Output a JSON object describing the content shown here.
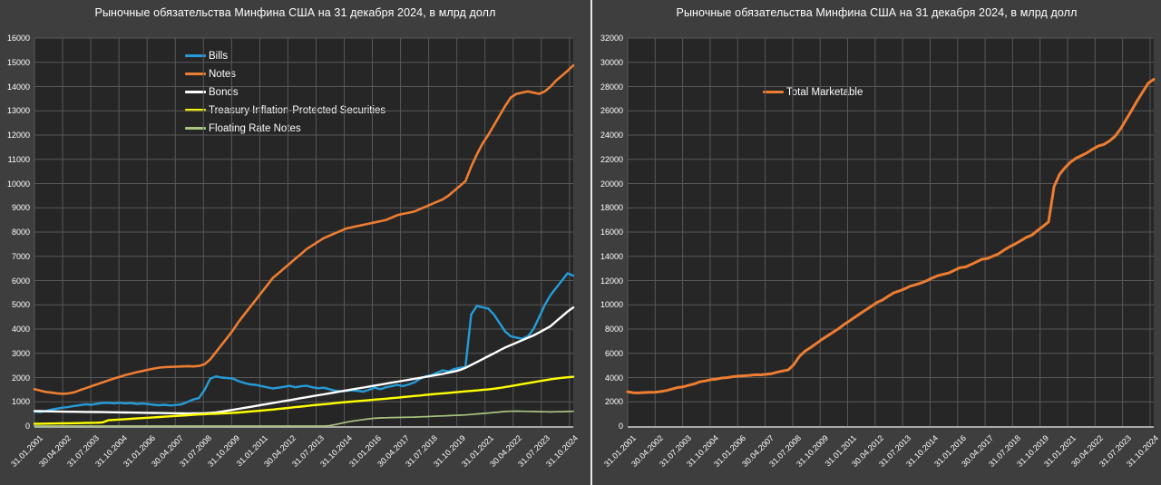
{
  "colors": {
    "background": "#3E3E3E",
    "plot_background": "#262626",
    "gridline": "#585858",
    "axis_line": "#A9A9A9",
    "text": "#FFFFFF",
    "divider": "#E8E8E8"
  },
  "chart_data": [
    {
      "type": "line",
      "title": "Рыночные обязательства Минфина США на 31 декабря 2024, в млрд долл",
      "grid": true,
      "legend_position": "inset-upper-left",
      "ylim": [
        0,
        16000
      ],
      "ytick_step": 1000,
      "yticks": [
        0,
        1000,
        2000,
        3000,
        4000,
        5000,
        6000,
        7000,
        8000,
        9000,
        10000,
        11000,
        12000,
        13000,
        14000,
        15000,
        16000
      ],
      "x_tick_labels": [
        "31.01.2001",
        "30.04.2002",
        "31.07.2003",
        "31.10.2004",
        "31.01.2006",
        "30.04.2007",
        "31.07.2008",
        "31.10.2009",
        "31.01.2011",
        "30.04.2012",
        "31.07.2013",
        "31.10.2014",
        "31.01.2016",
        "30.04.2017",
        "31.07.2018",
        "31.10.2019",
        "31.01.2021",
        "30.04.2022",
        "31.07.2023",
        "31.10.2024"
      ],
      "x_total_months": 287,
      "x_tick_interval_months": 15,
      "x_sampling": "quarterly 2001Q1 - 2024Q4",
      "series": [
        {
          "name": "Bills",
          "color": "#259CD8",
          "width": 2.4,
          "values": [
            600,
            580,
            620,
            680,
            720,
            760,
            790,
            830,
            860,
            900,
            880,
            920,
            950,
            960,
            940,
            960,
            930,
            950,
            910,
            930,
            910,
            880,
            860,
            880,
            850,
            870,
            900,
            1000,
            1100,
            1150,
            1500,
            1950,
            2050,
            2000,
            1980,
            1960,
            1850,
            1780,
            1720,
            1700,
            1650,
            1600,
            1550,
            1580,
            1620,
            1660,
            1600,
            1640,
            1660,
            1600,
            1560,
            1580,
            1520,
            1460,
            1430,
            1450,
            1480,
            1450,
            1420,
            1500,
            1580,
            1520,
            1600,
            1650,
            1700,
            1650,
            1720,
            1800,
            1950,
            2050,
            2100,
            2200,
            2300,
            2250,
            2350,
            2400,
            2450,
            4600,
            4950,
            4900,
            4850,
            4600,
            4250,
            3900,
            3700,
            3650,
            3600,
            3700,
            4000,
            4500,
            5000,
            5400,
            5700,
            6000,
            6300,
            6200
          ]
        },
        {
          "name": "Notes",
          "color": "#ED7D31",
          "width": 2.6,
          "values": [
            1520,
            1460,
            1410,
            1380,
            1350,
            1330,
            1350,
            1390,
            1480,
            1560,
            1640,
            1720,
            1800,
            1880,
            1960,
            2030,
            2100,
            2160,
            2220,
            2270,
            2320,
            2370,
            2410,
            2430,
            2440,
            2450,
            2460,
            2470,
            2460,
            2480,
            2550,
            2750,
            3050,
            3350,
            3650,
            3950,
            4300,
            4600,
            4900,
            5200,
            5500,
            5800,
            6100,
            6300,
            6500,
            6700,
            6900,
            7100,
            7300,
            7450,
            7600,
            7750,
            7850,
            7950,
            8050,
            8150,
            8200,
            8250,
            8300,
            8350,
            8400,
            8450,
            8500,
            8600,
            8700,
            8750,
            8800,
            8850,
            8950,
            9050,
            9150,
            9250,
            9350,
            9500,
            9700,
            9900,
            10100,
            10700,
            11200,
            11650,
            12000,
            12400,
            12800,
            13200,
            13550,
            13700,
            13750,
            13800,
            13750,
            13700,
            13800,
            14000,
            14250,
            14450,
            14650,
            14870
          ]
        },
        {
          "name": "Bonds",
          "color": "#FFFFFF",
          "width": 2.4,
          "values": [
            620,
            615,
            610,
            605,
            600,
            595,
            592,
            590,
            588,
            585,
            582,
            578,
            575,
            572,
            568,
            565,
            560,
            556,
            552,
            548,
            545,
            542,
            538,
            535,
            532,
            528,
            524,
            520,
            522,
            526,
            532,
            545,
            565,
            595,
            630,
            670,
            710,
            750,
            790,
            830,
            870,
            910,
            950,
            990,
            1030,
            1070,
            1110,
            1150,
            1190,
            1230,
            1270,
            1310,
            1350,
            1390,
            1430,
            1470,
            1510,
            1550,
            1590,
            1630,
            1670,
            1710,
            1750,
            1790,
            1830,
            1870,
            1910,
            1950,
            1990,
            2030,
            2070,
            2110,
            2150,
            2200,
            2250,
            2310,
            2400,
            2520,
            2640,
            2760,
            2880,
            3000,
            3120,
            3240,
            3340,
            3440,
            3540,
            3640,
            3740,
            3860,
            3990,
            4120,
            4320,
            4520,
            4720,
            4890
          ]
        },
        {
          "name": "Treasury Inflation-Protected Securities",
          "color": "#FFFF00",
          "width": 2.4,
          "values": [
            95,
            98,
            100,
            105,
            108,
            112,
            115,
            120,
            125,
            130,
            135,
            140,
            150,
            240,
            255,
            270,
            285,
            300,
            315,
            330,
            345,
            360,
            375,
            390,
            405,
            420,
            435,
            450,
            465,
            480,
            490,
            500,
            510,
            520,
            530,
            545,
            560,
            580,
            600,
            620,
            640,
            660,
            680,
            705,
            730,
            755,
            780,
            805,
            830,
            855,
            880,
            900,
            920,
            945,
            970,
            990,
            1010,
            1030,
            1050,
            1070,
            1090,
            1110,
            1130,
            1150,
            1170,
            1195,
            1220,
            1240,
            1260,
            1285,
            1310,
            1330,
            1350,
            1370,
            1390,
            1410,
            1430,
            1450,
            1470,
            1490,
            1510,
            1540,
            1570,
            1610,
            1650,
            1690,
            1730,
            1770,
            1810,
            1850,
            1890,
            1930,
            1960,
            1990,
            2010,
            2030
          ]
        },
        {
          "name": "Floating Rate Notes",
          "color": "#A9C47F",
          "width": 1.7,
          "values": [
            0,
            0,
            0,
            0,
            0,
            0,
            0,
            0,
            0,
            0,
            0,
            0,
            0,
            0,
            0,
            0,
            0,
            0,
            0,
            0,
            0,
            0,
            0,
            0,
            0,
            0,
            0,
            0,
            0,
            0,
            0,
            0,
            0,
            0,
            0,
            0,
            0,
            0,
            0,
            0,
            0,
            0,
            0,
            0,
            0,
            0,
            0,
            0,
            0,
            0,
            0,
            0,
            15,
            60,
            110,
            160,
            200,
            235,
            270,
            300,
            320,
            335,
            345,
            350,
            355,
            360,
            365,
            370,
            380,
            390,
            400,
            410,
            420,
            430,
            440,
            450,
            460,
            480,
            500,
            520,
            540,
            560,
            580,
            600,
            610,
            615,
            610,
            605,
            600,
            595,
            590,
            585,
            590,
            595,
            600,
            610
          ]
        }
      ]
    },
    {
      "type": "line",
      "title": "Рыночные обязательства Минфина США на 31 декабря 2024, в млрд долл",
      "grid": true,
      "legend_position": "inset-upper-left",
      "ylim": [
        0,
        32000
      ],
      "ytick_step": 2000,
      "yticks": [
        0,
        2000,
        4000,
        6000,
        8000,
        10000,
        12000,
        14000,
        16000,
        18000,
        20000,
        22000,
        24000,
        26000,
        28000,
        30000,
        32000
      ],
      "x_tick_labels": [
        "31.01.2001",
        "30.04.2002",
        "31.07.2003",
        "31.10.2004",
        "31.01.2006",
        "30.04.2007",
        "31.07.2008",
        "31.10.2009",
        "31.01.2011",
        "30.04.2012",
        "31.07.2013",
        "31.10.2014",
        "31.01.2016",
        "30.04.2017",
        "31.07.2018",
        "31.10.2019",
        "31.01.2021",
        "30.04.2022",
        "31.07.2023",
        "31.10.2024"
      ],
      "x_total_months": 287,
      "x_tick_interval_months": 15,
      "x_sampling": "quarterly 2001Q1 - 2024Q4",
      "series": [
        {
          "name": "Total Marketable",
          "color": "#ED7D31",
          "width": 3,
          "values": [
            2835,
            2753,
            2740,
            2770,
            2778,
            2797,
            2847,
            2930,
            3053,
            3175,
            3237,
            3358,
            3475,
            3652,
            3723,
            3825,
            3875,
            3966,
            3997,
            4078,
            4120,
            4152,
            4183,
            4235,
            4227,
            4268,
            4319,
            4440,
            4547,
            4636,
            5072,
            5745,
            6175,
            6465,
            6790,
            7125,
            7420,
            7710,
            8010,
            8350,
            8660,
            8970,
            9280,
            9575,
            9880,
            10185,
            10390,
            10695,
            10980,
            11135,
            11310,
            11540,
            11655,
            11805,
            11990,
            12220,
            12400,
            12515,
            12630,
            12850,
            13060,
            13125,
            13325,
            13540,
            13755,
            13825,
            14015,
            14210,
            14530,
            14805,
            15030,
            15300,
            15570,
            15750,
            16130,
            16470,
            16840,
            19750,
            20760,
            21320,
            21780,
            22100,
            22320,
            22550,
            22850,
            23095,
            23230,
            23515,
            23900,
            24505,
            25270,
            26035,
            26820,
            27555,
            28280,
            28600
          ]
        }
      ]
    }
  ]
}
